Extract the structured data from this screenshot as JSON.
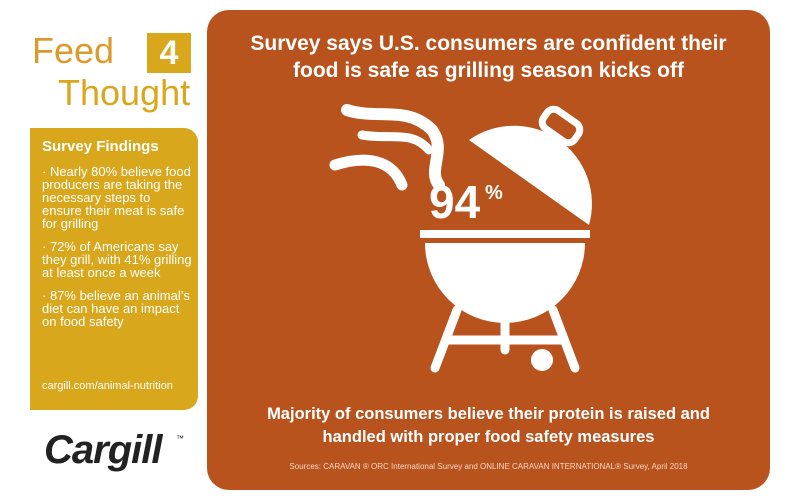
{
  "brand": {
    "word1": "Feed",
    "number": "4",
    "word2": "Thought"
  },
  "sidebar": {
    "title": "Survey Findings",
    "findings": [
      "· Nearly 80% believe food producers are taking the necessary steps to ensure their meat is safe for grilling",
      "· 72% of Americans say they grill, with 41% grilling at least once a week",
      "· 87% believe an animal’s diet can have an impact on food safety"
    ],
    "link": "cargill.com/animal-nutrition"
  },
  "logo": {
    "name": "Cargill",
    "mark": "™"
  },
  "panel": {
    "headline": "Survey says U.S. consumers are confident their food is safe as grilling season kicks off",
    "stat": {
      "number": "94",
      "unit": "%"
    },
    "subtext": "Majority of consumers believe their protein is raised and handled with proper food safety measures",
    "sources": "Sources: CARAVAN ® ORC International Survey and ONLINE CARAVAN INTERNATIONAL® Survey, April 2018"
  }
}
